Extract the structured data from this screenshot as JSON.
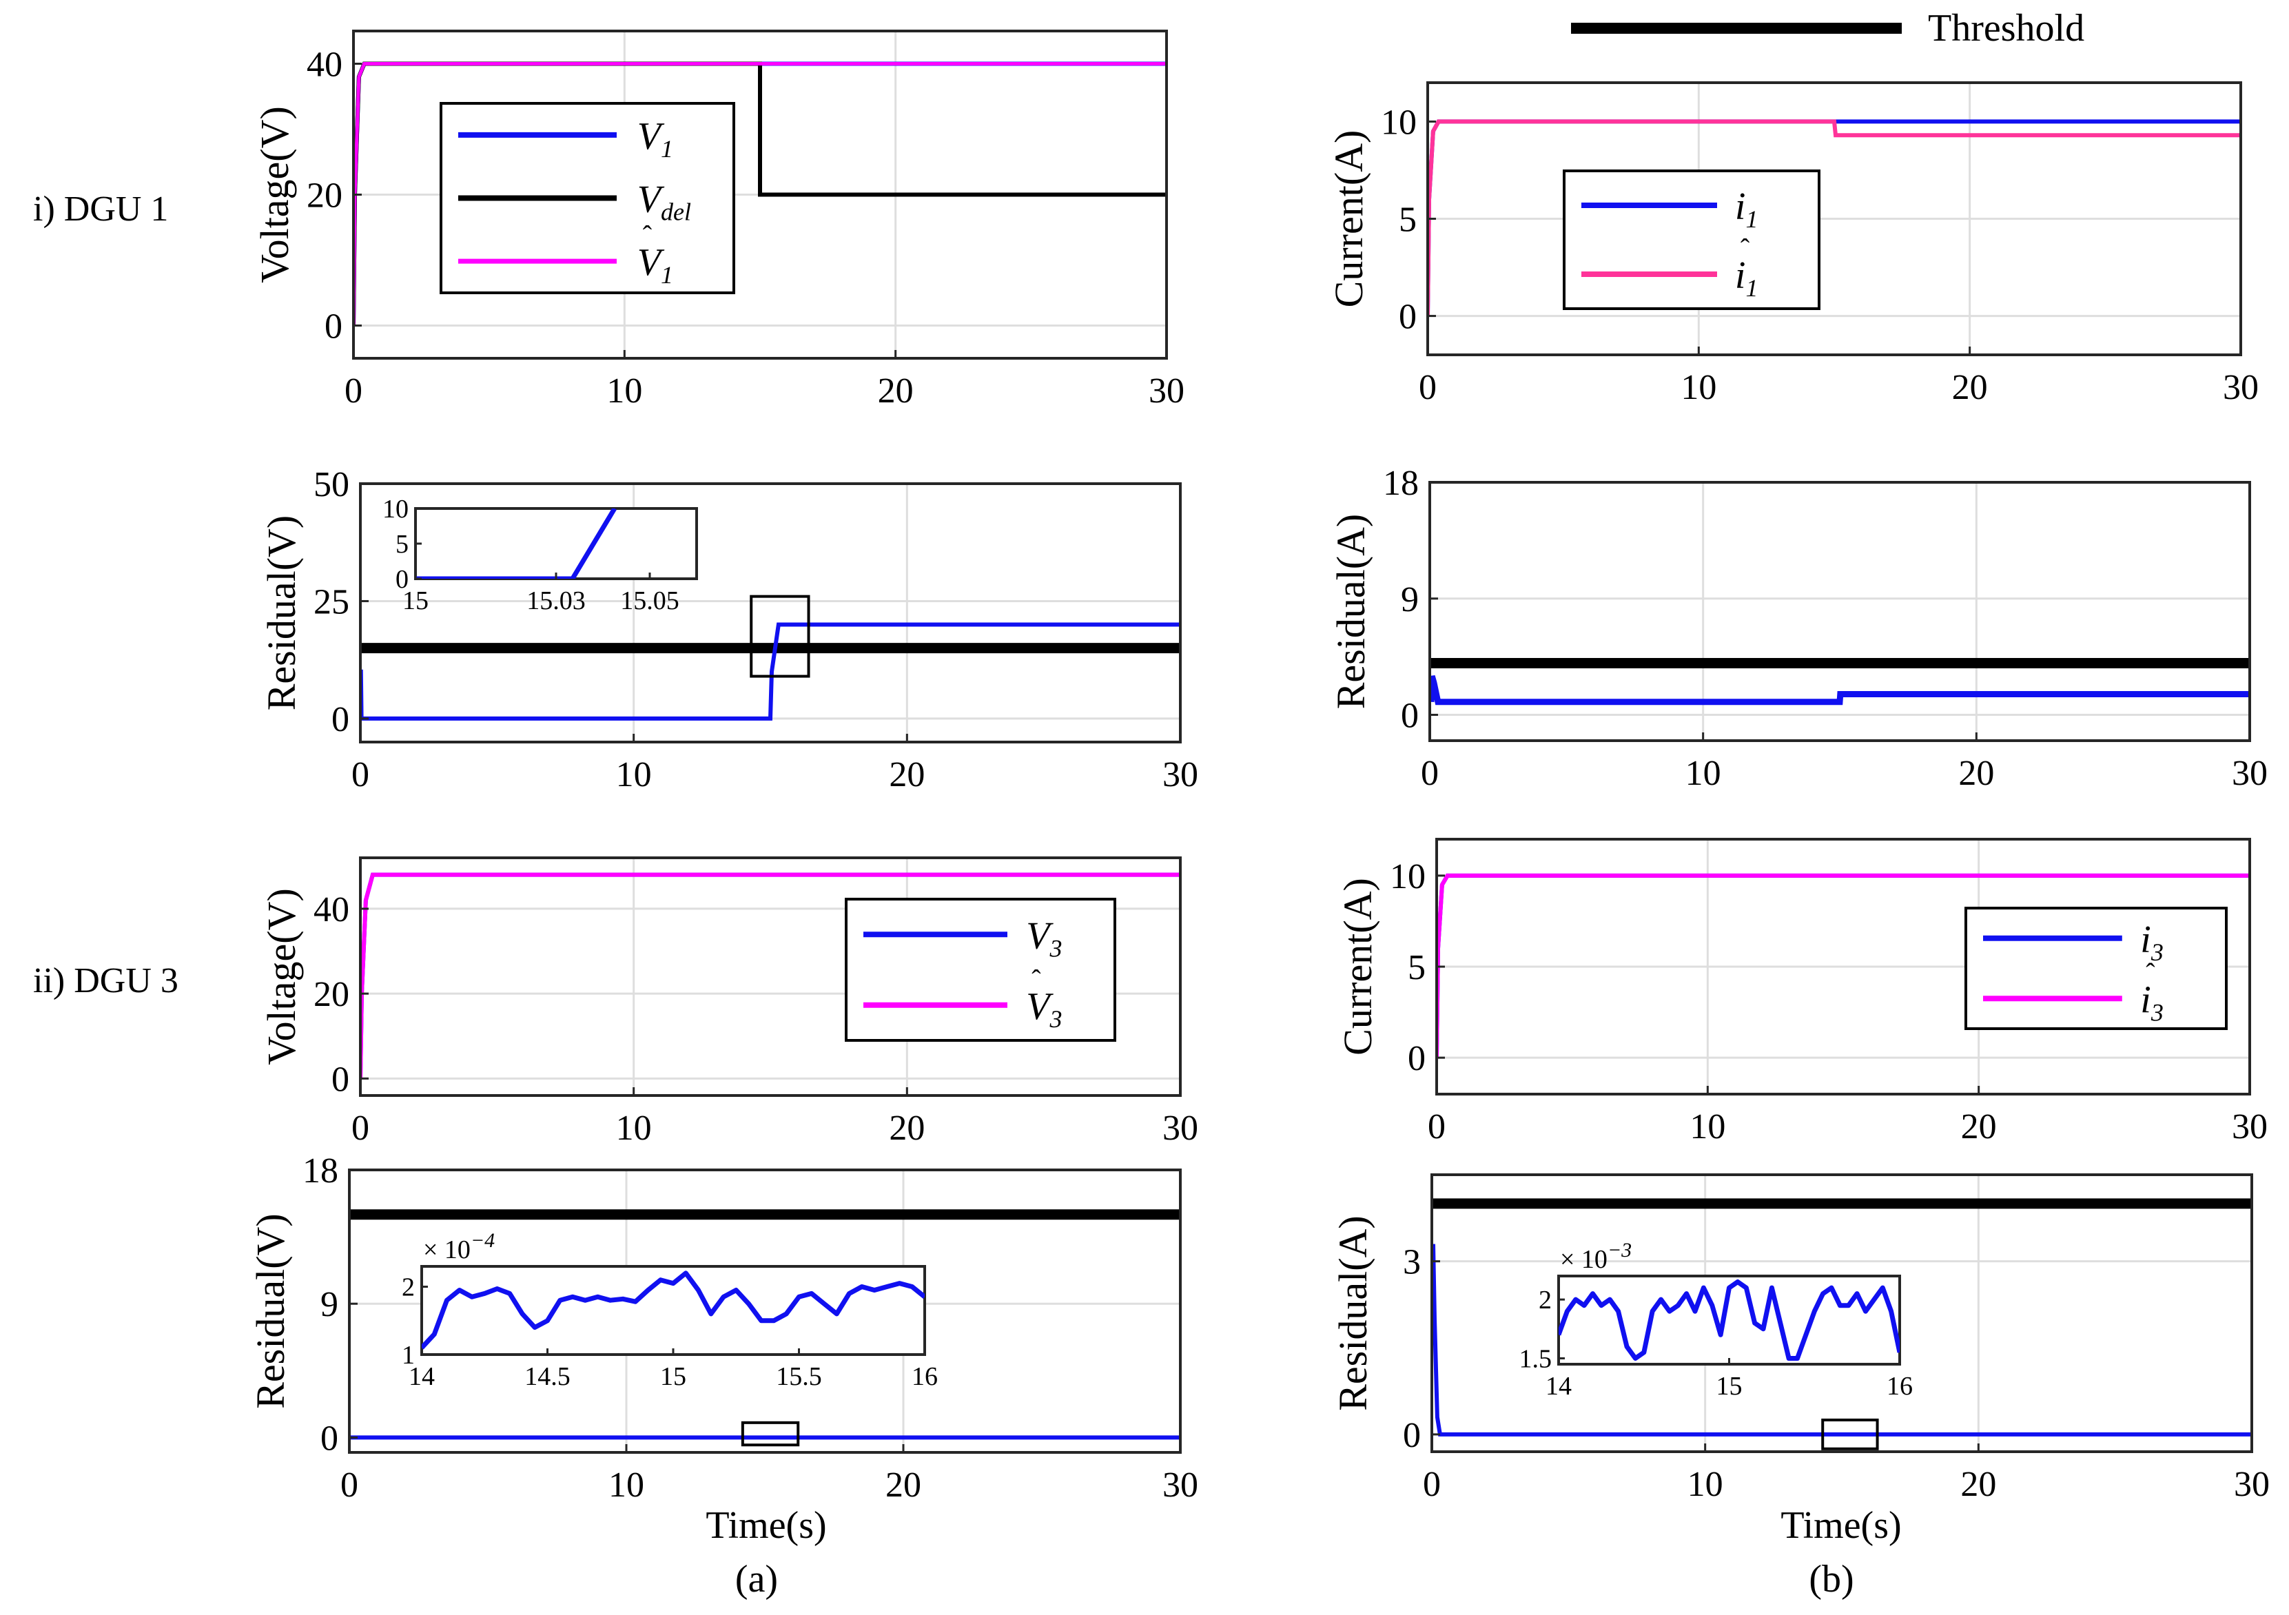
{
  "chart_data": {
    "threshold_legend": "Threshold",
    "row_labels": [
      "i) DGU 1",
      "ii) DGU  3"
    ],
    "x_label": "Time(s)",
    "captions": [
      "(a)",
      "(b)"
    ],
    "colors": {
      "blue": "#1010f0",
      "magenta": "#ff00ff",
      "pink": "#ff3399",
      "black": "#000000"
    },
    "panels": [
      {
        "id": "v1",
        "type": "line",
        "ylabel": "Voltage(V)",
        "xlim": [
          0,
          30
        ],
        "ylim": [
          -5,
          45
        ],
        "xticks": [
          0,
          10,
          20,
          30
        ],
        "yticks": [
          0,
          20,
          40
        ],
        "series": [
          {
            "name": "V1",
            "color": "#1010f0",
            "width": 6,
            "x": [
              0,
              0.05,
              0.2,
              0.4,
              30
            ],
            "y": [
              0,
              20,
              38,
              40,
              40
            ]
          },
          {
            "name": "Vdel",
            "color": "#000000",
            "width": 6,
            "x": [
              0,
              0.05,
              0.2,
              0.4,
              15,
              15,
              30
            ],
            "y": [
              0,
              20,
              38,
              40,
              40,
              20,
              20
            ]
          },
          {
            "name": "V1hat",
            "color": "#ff00ff",
            "width": 5,
            "x": [
              0,
              0.05,
              0.2,
              0.4,
              30
            ],
            "y": [
              0,
              20,
              38,
              40,
              40
            ]
          }
        ],
        "legend": {
          "position": "center-left",
          "entries": [
            {
              "series": "V1",
              "label": "V",
              "sub": "1",
              "hat": false
            },
            {
              "series": "Vdel",
              "label": "V",
              "sub": "del",
              "hat": false
            },
            {
              "series": "V1hat",
              "label": "V",
              "sub": "1",
              "hat": true
            }
          ]
        }
      },
      {
        "id": "r1",
        "type": "line",
        "ylabel": "Residual(V)",
        "xlim": [
          0,
          30
        ],
        "ylim": [
          -5,
          50
        ],
        "xticks": [
          0,
          10,
          20,
          30
        ],
        "yticks": [
          0,
          25,
          50
        ],
        "series": [
          {
            "name": "Threshold",
            "color": "#000000",
            "width": 15,
            "x": [
              0,
              30
            ],
            "y": [
              15,
              15
            ]
          },
          {
            "name": "Residual",
            "color": "#1010f0",
            "width": 6,
            "x": [
              0,
              0.02,
              0.04,
              15,
              15.05,
              15.3,
              30
            ],
            "y": [
              10,
              10,
              0,
              0,
              10,
              20,
              20
            ]
          }
        ],
        "zoom_box": {
          "x": [
            14.3,
            16.4
          ],
          "y": [
            9,
            26
          ]
        },
        "inset": {
          "position": "top-left",
          "xlim": [
            15,
            15.06
          ],
          "ylim": [
            0,
            10
          ],
          "xticks": [
            15,
            15.03,
            15.05
          ],
          "xticklabels": [
            "15",
            "15.03",
            "15.05"
          ],
          "yticks": [
            0,
            5,
            10
          ],
          "yticklabels": [
            "0",
            "5",
            "10"
          ],
          "series": [
            {
              "color": "#1010f0",
              "x": [
                15,
                15.0335,
                15.0425
              ],
              "y": [
                0,
                0,
                10
              ]
            }
          ]
        }
      },
      {
        "id": "v3",
        "type": "line",
        "ylabel": "Voltage(V)",
        "xlim": [
          0,
          30
        ],
        "ylim": [
          -4,
          52
        ],
        "xticks": [
          0,
          10,
          20,
          30
        ],
        "yticks": [
          0,
          20,
          40
        ],
        "series": [
          {
            "name": "V3",
            "color": "#1010f0",
            "width": 6,
            "x": [
              0,
              0.05,
              0.2,
              0.45,
              30
            ],
            "y": [
              0,
              20,
              42,
              48,
              48
            ]
          },
          {
            "name": "V3hat",
            "color": "#ff00ff",
            "width": 6,
            "x": [
              0,
              0.05,
              0.2,
              0.45,
              30
            ],
            "y": [
              0,
              20,
              42,
              48,
              48
            ]
          }
        ],
        "legend": {
          "position": "center-right",
          "entries": [
            {
              "series": "V3",
              "label": "V",
              "sub": "3",
              "hat": false
            },
            {
              "series": "V3hat",
              "label": "V",
              "sub": "3",
              "hat": true
            }
          ]
        }
      },
      {
        "id": "r3",
        "type": "line",
        "ylabel": "Residual(V)",
        "xlim": [
          0,
          30
        ],
        "ylim": [
          -1,
          18
        ],
        "xticks": [
          0,
          10,
          20,
          30
        ],
        "yticks": [
          0,
          9,
          18
        ],
        "series": [
          {
            "name": "Threshold",
            "color": "#000000",
            "width": 15,
            "x": [
              0,
              30
            ],
            "y": [
              15,
              15
            ]
          },
          {
            "name": "Residual",
            "color": "#1010f0",
            "width": 6,
            "x": [
              0,
              30
            ],
            "y": [
              0,
              0
            ]
          }
        ],
        "zoom_box": {
          "x": [
            14.2,
            16.2
          ],
          "y": [
            -0.5,
            1.0
          ]
        },
        "inset": {
          "position": "center",
          "xlim": [
            14,
            16
          ],
          "ylim": [
            1,
            2.3
          ],
          "xticks": [
            14,
            14.5,
            15,
            15.5,
            16
          ],
          "xticklabels": [
            "14",
            "14.5",
            "15",
            "15.5",
            "16"
          ],
          "yticks": [
            1,
            2
          ],
          "yticklabels": [
            "1",
            "2"
          ],
          "exponent": "-4",
          "series": [
            {
              "color": "#1010f0",
              "x": [
                14,
                14.05,
                14.1,
                14.15,
                14.2,
                14.25,
                14.3,
                14.35,
                14.4,
                14.45,
                14.5,
                14.55,
                14.6,
                14.65,
                14.7,
                14.75,
                14.8,
                14.85,
                14.9,
                14.95,
                15,
                15.05,
                15.1,
                15.15,
                15.2,
                15.25,
                15.3,
                15.35,
                15.4,
                15.45,
                15.5,
                15.55,
                15.6,
                15.65,
                15.7,
                15.75,
                15.8,
                15.85,
                15.9,
                15.95,
                16
              ],
              "y": [
                1.1,
                1.3,
                1.8,
                1.95,
                1.85,
                1.9,
                1.97,
                1.9,
                1.6,
                1.4,
                1.5,
                1.8,
                1.85,
                1.8,
                1.85,
                1.8,
                1.82,
                1.78,
                1.95,
                2.1,
                2.05,
                2.2,
                1.95,
                1.6,
                1.85,
                1.95,
                1.75,
                1.5,
                1.5,
                1.6,
                1.85,
                1.9,
                1.75,
                1.6,
                1.9,
                2.0,
                1.95,
                2.0,
                2.05,
                2.0,
                1.85
              ]
            }
          ]
        }
      },
      {
        "id": "i1",
        "type": "line",
        "ylabel": "Current(A)",
        "xlim": [
          0,
          30
        ],
        "ylim": [
          -2,
          12
        ],
        "xticks": [
          0,
          10,
          20,
          30
        ],
        "yticks": [
          0,
          5,
          10
        ],
        "series": [
          {
            "name": "i1",
            "color": "#1010f0",
            "width": 6,
            "x": [
              0,
              0.05,
              0.2,
              0.4,
              30
            ],
            "y": [
              0,
              6,
              9.5,
              10,
              10
            ]
          },
          {
            "name": "i1hat",
            "color": "#ff3399",
            "width": 6,
            "x": [
              0,
              0.05,
              0.2,
              0.4,
              15,
              15.05,
              30
            ],
            "y": [
              0,
              6,
              9.5,
              10,
              10,
              9.3,
              9.3
            ]
          }
        ],
        "legend": {
          "position": "center-left",
          "entries": [
            {
              "series": "i1",
              "label": "i",
              "sub": "1",
              "hat": false
            },
            {
              "series": "i1hat",
              "label": "i",
              "sub": "1",
              "hat": true
            }
          ]
        }
      },
      {
        "id": "ri1",
        "type": "line",
        "ylabel": "Residual(A)",
        "xlim": [
          0,
          30
        ],
        "ylim": [
          -2,
          18
        ],
        "xticks": [
          0,
          10,
          20,
          30
        ],
        "yticks": [
          0,
          9,
          18
        ],
        "series": [
          {
            "name": "Threshold",
            "color": "#000000",
            "width": 15,
            "x": [
              0,
              30
            ],
            "y": [
              4,
              4
            ]
          },
          {
            "name": "Residual",
            "color": "#1010f0",
            "width": 9,
            "x": [
              0.05,
              0.08,
              0.15,
              0.3,
              15,
              15.02,
              30
            ],
            "y": [
              1,
              3,
              2.5,
              1,
              1,
              1.6,
              1.6
            ]
          }
        ]
      },
      {
        "id": "i3",
        "type": "line",
        "ylabel": "Current(A)",
        "xlim": [
          0,
          30
        ],
        "ylim": [
          -2,
          12
        ],
        "xticks": [
          0,
          10,
          20,
          30
        ],
        "yticks": [
          0,
          5,
          10
        ],
        "series": [
          {
            "name": "i3",
            "color": "#1010f0",
            "width": 6,
            "x": [
              0,
              0.05,
              0.2,
              0.4,
              30
            ],
            "y": [
              0,
              6,
              9.5,
              10,
              10
            ]
          },
          {
            "name": "i3hat",
            "color": "#ff00ff",
            "width": 6,
            "x": [
              0,
              0.05,
              0.2,
              0.4,
              30
            ],
            "y": [
              0,
              6,
              9.5,
              10,
              10
            ]
          }
        ],
        "legend": {
          "position": "center-right",
          "entries": [
            {
              "series": "i3",
              "label": "i",
              "sub": "3",
              "hat": false
            },
            {
              "series": "i3hat",
              "label": "i",
              "sub": "3",
              "hat": true
            }
          ]
        }
      },
      {
        "id": "ri3",
        "type": "line",
        "ylabel": "Residual(A)",
        "xlim": [
          0,
          30
        ],
        "ylim": [
          -0.3,
          4.5
        ],
        "xticks": [
          0,
          10,
          20,
          30
        ],
        "yticks": [
          0,
          3
        ],
        "series": [
          {
            "name": "Threshold",
            "color": "#000000",
            "width": 15,
            "x": [
              0,
              30
            ],
            "y": [
              4,
              4
            ]
          },
          {
            "name": "Residual",
            "color": "#1010f0",
            "width": 6,
            "x": [
              0.05,
              0.1,
              0.2,
              0.3,
              30
            ],
            "y": [
              3.3,
              2,
              0.3,
              0,
              0
            ]
          }
        ],
        "zoom_box": {
          "x": [
            14.3,
            16.3
          ],
          "y": [
            -0.25,
            0.25
          ]
        },
        "inset": {
          "position": "center",
          "xlim": [
            14,
            16
          ],
          "ylim": [
            1.45,
            2.2
          ],
          "xticks": [
            14,
            15,
            16
          ],
          "xticklabels": [
            "14",
            "15",
            "16"
          ],
          "yticks": [
            1.5,
            2
          ],
          "yticklabels": [
            "1.5",
            "2"
          ],
          "exponent": "-3",
          "series": [
            {
              "color": "#1010f0",
              "x": [
                14,
                14.05,
                14.1,
                14.15,
                14.2,
                14.25,
                14.3,
                14.35,
                14.4,
                14.45,
                14.5,
                14.55,
                14.6,
                14.65,
                14.7,
                14.75,
                14.8,
                14.85,
                14.9,
                14.95,
                15,
                15.05,
                15.1,
                15.15,
                15.2,
                15.25,
                15.3,
                15.35,
                15.4,
                15.45,
                15.5,
                15.55,
                15.6,
                15.65,
                15.7,
                15.75,
                15.8,
                15.85,
                15.9,
                15.95,
                16
              ],
              "y": [
                1.7,
                1.9,
                2.0,
                1.95,
                2.05,
                1.95,
                2.0,
                1.9,
                1.6,
                1.5,
                1.55,
                1.9,
                2.0,
                1.9,
                1.95,
                2.05,
                1.9,
                2.1,
                1.95,
                1.7,
                2.1,
                2.15,
                2.1,
                1.8,
                1.75,
                2.1,
                1.8,
                1.5,
                1.5,
                1.7,
                1.9,
                2.05,
                2.1,
                1.95,
                1.95,
                2.05,
                1.9,
                2.0,
                2.1,
                1.9,
                1.55
              ]
            }
          ]
        }
      }
    ]
  }
}
